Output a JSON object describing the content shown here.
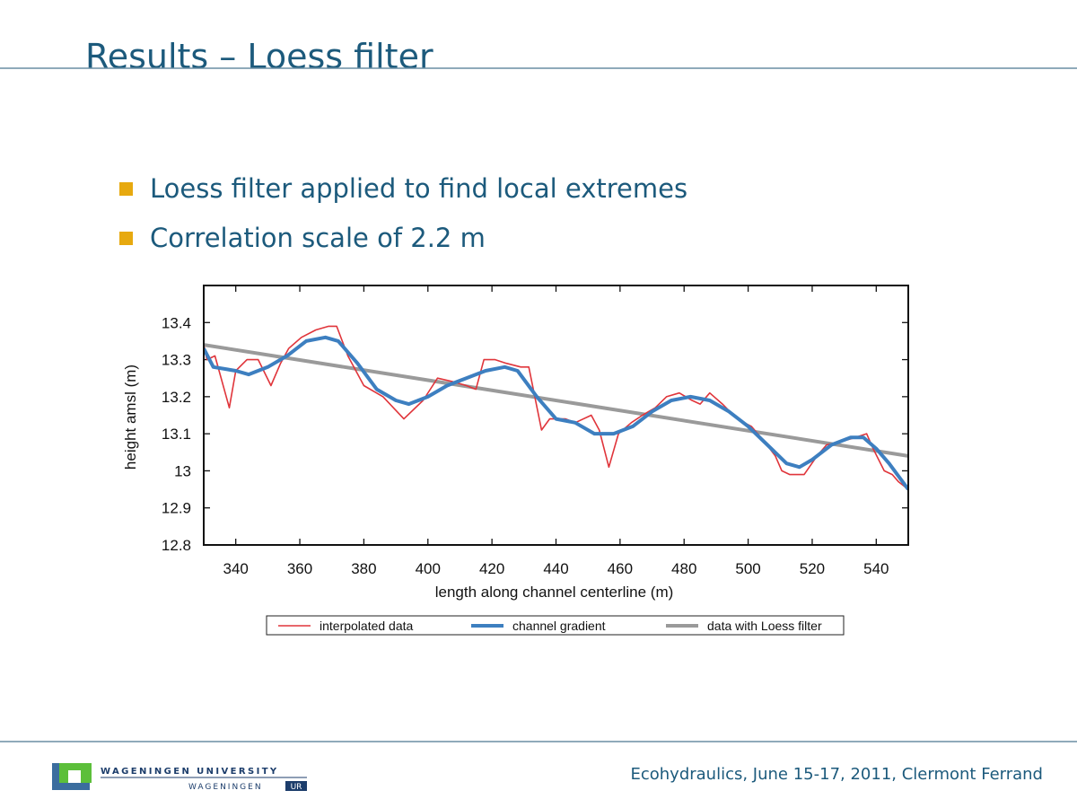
{
  "slide": {
    "title": "Results – Loess filter",
    "bullets": [
      "Loess filter applied to find local extremes",
      "Correlation scale of 2.2 m"
    ],
    "footer": "Ecohydraulics, June 15-17, 2011, Clermont Ferrand",
    "logo": {
      "name": "WAGENINGEN UNIVERSITY",
      "sub": "WAGENINGEN",
      "badge": "UR"
    }
  },
  "chart_data": {
    "type": "line",
    "xlabel": "length along channel centerline (m)",
    "ylabel": "height amsl (m)",
    "xlim": [
      330,
      550
    ],
    "xticks": [
      340,
      360,
      380,
      400,
      420,
      440,
      460,
      480,
      500,
      520,
      540
    ],
    "ylim": [
      12.8,
      13.5
    ],
    "yticks": [
      13.4,
      13.3,
      13.2,
      13.1,
      13,
      12.9,
      12.8
    ],
    "legend": "bottom",
    "series": [
      {
        "name": "interpolated data",
        "color": "#e0353b",
        "x": [
          330,
          331,
          333.5,
          338,
          340,
          343.5,
          347,
          351,
          354,
          356.5,
          360.5,
          365,
          369,
          371.5,
          375,
          380,
          386,
          392.5,
          398.5,
          403,
          408,
          412,
          415,
          417.5,
          421,
          424.5,
          429,
          431.5,
          435.5,
          438,
          443,
          446,
          451,
          453.5,
          456.5,
          459.5,
          463.5,
          467,
          471,
          474.5,
          478.5,
          482.5,
          485,
          488,
          492,
          496.5,
          501,
          505,
          508.5,
          510.5,
          513,
          517.5,
          521.5,
          524.5,
          529.5,
          533.5,
          537,
          539,
          542.5,
          545,
          547,
          550
        ],
        "values": [
          13.34,
          13.3,
          13.31,
          13.17,
          13.27,
          13.3,
          13.3,
          13.23,
          13.29,
          13.33,
          13.36,
          13.38,
          13.39,
          13.39,
          13.31,
          13.23,
          13.2,
          13.14,
          13.19,
          13.25,
          13.24,
          13.23,
          13.22,
          13.3,
          13.3,
          13.29,
          13.28,
          13.28,
          13.11,
          13.14,
          13.14,
          13.13,
          13.15,
          13.11,
          13.01,
          13.1,
          13.13,
          13.15,
          13.17,
          13.2,
          13.21,
          13.19,
          13.18,
          13.21,
          13.18,
          13.14,
          13.12,
          13.08,
          13.04,
          13.0,
          12.99,
          12.99,
          13.04,
          13.07,
          13.08,
          13.09,
          13.1,
          13.06,
          13.0,
          12.99,
          12.97,
          12.95
        ]
      },
      {
        "name": "channel gradient",
        "color": "#3d7fc0",
        "x": [
          330,
          333,
          340,
          344,
          350,
          356,
          362,
          368,
          372,
          378,
          384,
          390,
          394,
          400,
          406,
          412,
          418,
          424,
          428,
          434,
          440,
          446,
          452,
          458,
          464,
          470,
          476,
          482,
          488,
          494,
          500,
          506,
          512,
          516,
          520,
          526,
          532,
          536,
          540,
          544,
          550
        ],
        "values": [
          13.33,
          13.28,
          13.27,
          13.26,
          13.28,
          13.31,
          13.35,
          13.36,
          13.35,
          13.29,
          13.22,
          13.19,
          13.18,
          13.2,
          13.23,
          13.25,
          13.27,
          13.28,
          13.27,
          13.2,
          13.14,
          13.13,
          13.1,
          13.1,
          13.12,
          13.16,
          13.19,
          13.2,
          13.19,
          13.16,
          13.12,
          13.07,
          13.02,
          13.01,
          13.03,
          13.07,
          13.09,
          13.09,
          13.06,
          13.02,
          12.95
        ]
      },
      {
        "name": "data with Loess filter",
        "color": "#9a9a9a",
        "x": [
          330,
          550
        ],
        "values": [
          13.34,
          13.04
        ]
      }
    ]
  }
}
